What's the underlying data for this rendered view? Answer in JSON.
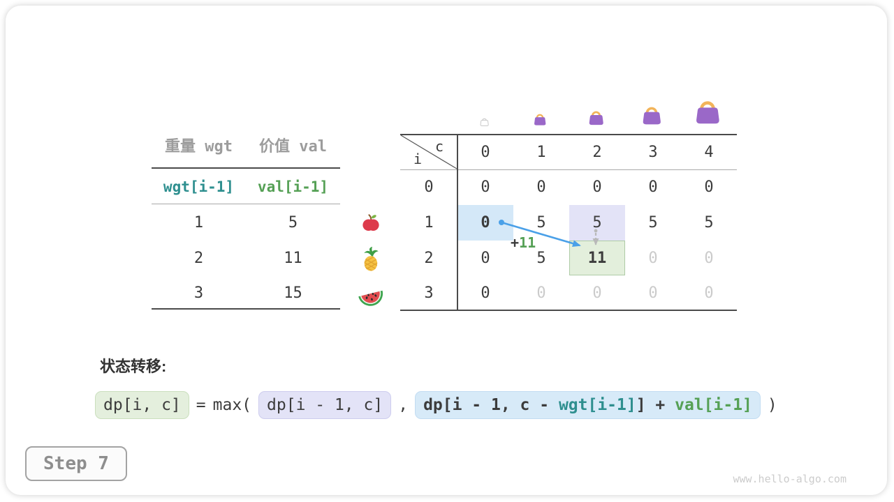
{
  "card": {
    "step_label": "Step 7",
    "watermark": "www.hello-algo.com"
  },
  "items_table": {
    "col_headers": [
      "重量 wgt",
      "价值 val"
    ],
    "formula_row": [
      {
        "text": "wgt[i-1]",
        "color": "teal"
      },
      {
        "text": "val[i-1]",
        "color": "green"
      }
    ],
    "rows": [
      [
        "1",
        "5"
      ],
      [
        "2",
        "11"
      ],
      [
        "3",
        "15"
      ]
    ],
    "item_icons": [
      "apple",
      "pineapple",
      "watermelon"
    ]
  },
  "dp_table": {
    "corner": {
      "row_var": "i",
      "col_var": "c"
    },
    "col_headers": [
      "0",
      "1",
      "2",
      "3",
      "4"
    ],
    "row_headers": [
      "0",
      "1",
      "2",
      "3"
    ],
    "bags": [
      {
        "col": 0,
        "capacity": "0",
        "ghost": true
      },
      {
        "col": 1,
        "capacity": "1",
        "ghost": false
      },
      {
        "col": 2,
        "capacity": "2",
        "ghost": false
      },
      {
        "col": 3,
        "capacity": "3",
        "ghost": false
      },
      {
        "col": 4,
        "capacity": "4",
        "ghost": false
      }
    ],
    "cells": [
      [
        {
          "v": "0"
        },
        {
          "v": "0"
        },
        {
          "v": "0"
        },
        {
          "v": "0"
        },
        {
          "v": "0"
        }
      ],
      [
        {
          "v": "0",
          "hl": "blue",
          "bold": true
        },
        {
          "v": "5"
        },
        {
          "v": "5",
          "hl": "lavender"
        },
        {
          "v": "5"
        },
        {
          "v": "5"
        }
      ],
      [
        {
          "v": "0"
        },
        {
          "v": "5"
        },
        {
          "v": "11",
          "hl": "green",
          "bold": true
        },
        {
          "v": "0",
          "muted": true
        },
        {
          "v": "0",
          "muted": true
        }
      ],
      [
        {
          "v": "0"
        },
        {
          "v": "0",
          "muted": true
        },
        {
          "v": "0",
          "muted": true
        },
        {
          "v": "0",
          "muted": true
        },
        {
          "v": "0",
          "muted": true
        }
      ]
    ],
    "annotation": {
      "plus": "+",
      "value": "11"
    }
  },
  "transition": {
    "label": "状态转移:",
    "lhs": "dp[i, c]",
    "equals": "=",
    "max_open": "max(",
    "arg1": "dp[i - 1, c]",
    "comma": ",",
    "arg2_parts": [
      {
        "text": "dp[i - 1, c - ",
        "color": "dark"
      },
      {
        "text": "wgt[i-1]",
        "color": "teal"
      },
      {
        "text": "] + ",
        "color": "dark"
      },
      {
        "text": "val[i-1]",
        "color": "green"
      }
    ],
    "close": ")"
  },
  "colors": {
    "teal": "#2e8f8f",
    "green": "#55a055",
    "arrow_blue": "#4aa0e8",
    "arrow_gray": "#b9b9b9",
    "hl_blue": "#d4e8f8",
    "hl_lavender": "#e3e3f7",
    "hl_green": "#e3efdc",
    "bag_purple": "#9a68c8",
    "bag_handle": "#f2b45a",
    "muted_text": "#cbcbcb",
    "header_gray": "#9c9c9c"
  }
}
